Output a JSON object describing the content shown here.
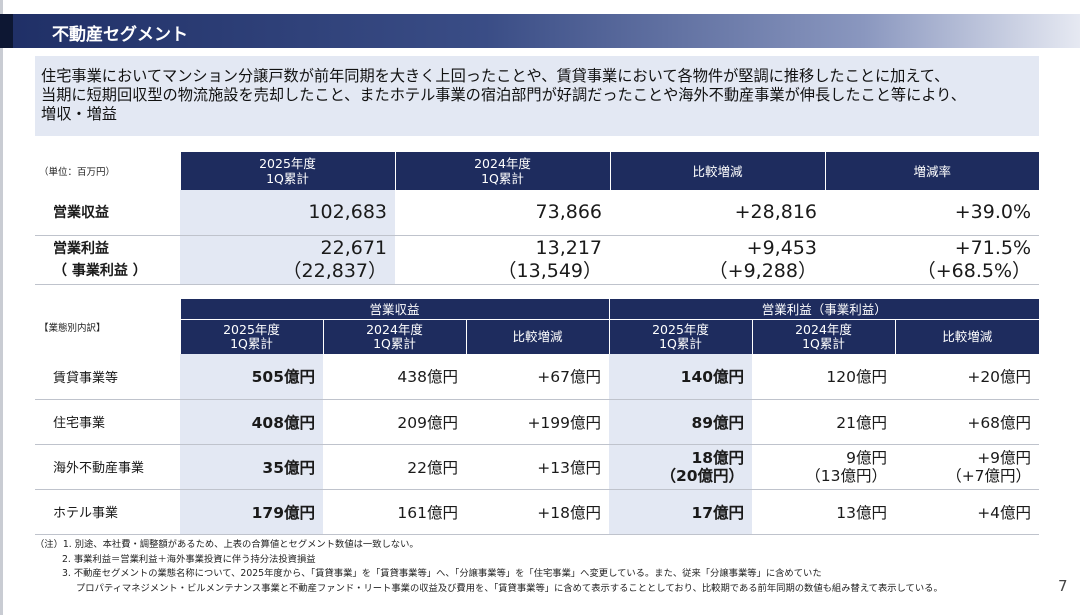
{
  "title": "不動産セグメント",
  "summary_lines": [
    "住宅事業においてマンション分譲戸数が前年同期を大きく上回ったことや、賃貸事業において各物件が堅調に推移したことに加えて、",
    "当期に短期回収型の物流施設を売却したこと、またホテル事業の宿泊部門が好調だったことや海外不動産事業が伸長したこと等により、",
    "増収・増益"
  ],
  "top_table": {
    "unit": "（単位：百万円）",
    "headers": [
      {
        "l1": "2025年度",
        "l2": "1Q累計"
      },
      {
        "l1": "2024年度",
        "l2": "1Q累計"
      },
      {
        "l1": "比較増減",
        "l2": ""
      },
      {
        "l1": "増減率",
        "l2": ""
      }
    ],
    "rows": [
      {
        "label1": "営業収益",
        "label2": "",
        "values": [
          {
            "a": "102,683",
            "b": ""
          },
          {
            "a": "73,866",
            "b": ""
          },
          {
            "a": "+28,816",
            "b": ""
          },
          {
            "a": "+39.0%",
            "b": ""
          }
        ]
      },
      {
        "label1": "営業利益",
        "label2": "（ 事業利益 ）",
        "values": [
          {
            "a": "22,671",
            "b": "（22,837）"
          },
          {
            "a": "13,217",
            "b": "（13,549）"
          },
          {
            "a": "+9,453",
            "b": "（+9,288）"
          },
          {
            "a": "+71.5%",
            "b": "（+68.5%）"
          }
        ]
      }
    ]
  },
  "bottom_table": {
    "note": "【業態別内訳】",
    "group1": "営業収益",
    "group2": "営業利益（事業利益）",
    "headers": [
      {
        "l1": "2025年度",
        "l2": "1Q累計"
      },
      {
        "l1": "2024年度",
        "l2": "1Q累計"
      },
      {
        "l1": "比較増減",
        "l2": ""
      },
      {
        "l1": "2025年度",
        "l2": "1Q累計"
      },
      {
        "l1": "2024年度",
        "l2": "1Q累計"
      },
      {
        "l1": "比較増減",
        "l2": ""
      }
    ],
    "rows": [
      {
        "label": "賃貸事業等",
        "values": [
          {
            "a": "505億円",
            "b": ""
          },
          {
            "a": "438億円",
            "b": ""
          },
          {
            "a": "+67億円",
            "b": ""
          },
          {
            "a": "140億円",
            "b": ""
          },
          {
            "a": "120億円",
            "b": ""
          },
          {
            "a": "+20億円",
            "b": ""
          }
        ]
      },
      {
        "label": "住宅事業",
        "values": [
          {
            "a": "408億円",
            "b": ""
          },
          {
            "a": "209億円",
            "b": ""
          },
          {
            "a": "+199億円",
            "b": ""
          },
          {
            "a": "89億円",
            "b": ""
          },
          {
            "a": "21億円",
            "b": ""
          },
          {
            "a": "+68億円",
            "b": ""
          }
        ]
      },
      {
        "label": "海外不動産事業",
        "values": [
          {
            "a": "35億円",
            "b": ""
          },
          {
            "a": "22億円",
            "b": ""
          },
          {
            "a": "+13億円",
            "b": ""
          },
          {
            "a": "18億円",
            "b": "（20億円）"
          },
          {
            "a": "9億円",
            "b": "（13億円）"
          },
          {
            "a": "+9億円",
            "b": "（+7億円）"
          }
        ]
      },
      {
        "label": "ホテル事業",
        "values": [
          {
            "a": "179億円",
            "b": ""
          },
          {
            "a": "161億円",
            "b": ""
          },
          {
            "a": "+18億円",
            "b": ""
          },
          {
            "a": "17億円",
            "b": ""
          },
          {
            "a": "13億円",
            "b": ""
          },
          {
            "a": "+4億円",
            "b": ""
          }
        ]
      }
    ]
  },
  "footnotes": [
    "（注）1. 別途、本社費・調整額があるため、上表の合算値とセグメント数値は一致しない。",
    "2. 事業利益＝営業利益＋海外事業投資に伴う持分法投資損益",
    "3. 不動産セグメントの業態名称について、2025年度から、「賃貸事業」を「賃貸事業等」へ、「分譲事業等」を「住宅事業」へ変更している。また、従来「分譲事業等」に含めていた",
    "プロパティマネジメント・ビルメンテナンス事業と不動産ファンド・リート事業の収益及び費用を、「賃貸事業等」に含めて表示することとしており、比較期である前年同期の数値も組み替えて表示している。"
  ],
  "page_number": "7"
}
